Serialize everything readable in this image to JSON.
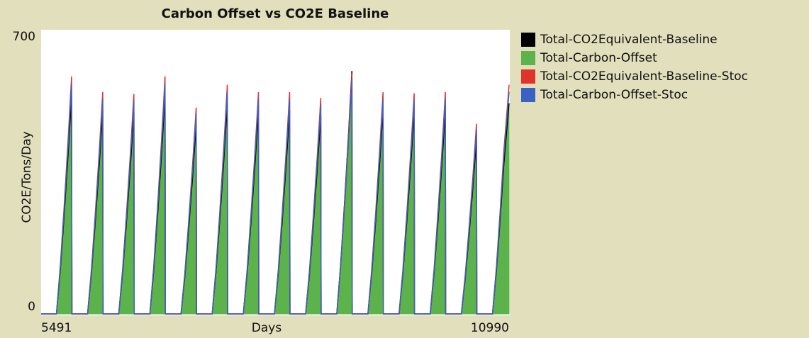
{
  "chart_data": {
    "type": "line",
    "title": "Carbon Offset vs CO2E Baseline",
    "x_label": "Days",
    "y_label": "CO2E/Tons/Day",
    "xlim": [
      5491,
      10990
    ],
    "xticks": [
      5491,
      10990
    ],
    "ylim": [
      0,
      700
    ],
    "yticks": [
      0,
      700
    ],
    "grid": false,
    "legend": "right",
    "x": [
      5491,
      5671,
      5716,
      5761,
      5806,
      5849,
      5853,
      6037,
      6082,
      6127,
      6172,
      6215,
      6219,
      6403,
      6448,
      6493,
      6538,
      6581,
      6585,
      6769,
      6814,
      6859,
      6904,
      6947,
      6951,
      7135,
      7180,
      7225,
      7270,
      7313,
      7317,
      7501,
      7546,
      7591,
      7636,
      7679,
      7683,
      7867,
      7912,
      7957,
      8002,
      8045,
      8049,
      8233,
      8278,
      8323,
      8368,
      8411,
      8415,
      8599,
      8644,
      8689,
      8734,
      8777,
      8781,
      8965,
      9010,
      9055,
      9100,
      9143,
      9147,
      9331,
      9376,
      9421,
      9466,
      9509,
      9513,
      9697,
      9742,
      9787,
      9832,
      9875,
      9879,
      10063,
      10108,
      10153,
      10198,
      10241,
      10245,
      10429,
      10474,
      10519,
      10564,
      10607,
      10611,
      10795,
      10840,
      10885,
      10930,
      10990
    ],
    "series": [
      {
        "name": "Total-CO2Equivalent-Baseline",
        "color": "#000000",
        "values": [
          0,
          0,
          113,
          255,
          408,
          567,
          0,
          0,
          106,
          238,
          381,
          529,
          0,
          0,
          105,
          236,
          377,
          524,
          0,
          0,
          113,
          255,
          408,
          567,
          0,
          0,
          98,
          221,
          354,
          492,
          0,
          0,
          109,
          246,
          393,
          546,
          0,
          0,
          106,
          238,
          381,
          529,
          0,
          0,
          106,
          238,
          381,
          529,
          0,
          0,
          103,
          232,
          371,
          515,
          0,
          0,
          126,
          284,
          454,
          630,
          0,
          0,
          106,
          238,
          381,
          529,
          0,
          0,
          105,
          237,
          379,
          526,
          0,
          0,
          106,
          238,
          381,
          529,
          0,
          0,
          91,
          204,
          327,
          454,
          0,
          0,
          109,
          246,
          393,
          546
        ]
      },
      {
        "name": "Total-Carbon-Offset",
        "color": "#5db34b",
        "area": true,
        "values": [
          0,
          0,
          113,
          255,
          408,
          567,
          0,
          0,
          106,
          238,
          381,
          529,
          0,
          0,
          105,
          236,
          377,
          524,
          0,
          0,
          113,
          255,
          408,
          567,
          0,
          0,
          98,
          221,
          354,
          492,
          0,
          0,
          109,
          246,
          393,
          546,
          0,
          0,
          106,
          238,
          381,
          529,
          0,
          0,
          106,
          238,
          381,
          529,
          0,
          0,
          103,
          232,
          371,
          515,
          0,
          0,
          114,
          257,
          412,
          572,
          0,
          0,
          106,
          238,
          381,
          529,
          0,
          0,
          105,
          237,
          379,
          526,
          0,
          0,
          106,
          238,
          381,
          529,
          0,
          0,
          91,
          204,
          327,
          454,
          0,
          0,
          109,
          246,
          393,
          546
        ]
      },
      {
        "name": "Total-CO2Equivalent-Baseline-Stoc",
        "color": "#e0332b",
        "values": [
          0,
          0,
          123,
          277,
          444,
          616,
          0,
          0,
          115,
          259,
          414,
          575,
          0,
          0,
          114,
          257,
          410,
          570,
          0,
          0,
          123,
          277,
          444,
          616,
          0,
          0,
          107,
          241,
          385,
          535,
          0,
          0,
          119,
          267,
          428,
          594,
          0,
          0,
          115,
          259,
          414,
          575,
          0,
          0,
          115,
          259,
          414,
          575,
          0,
          0,
          112,
          252,
          403,
          560,
          0,
          0,
          124,
          280,
          448,
          622,
          0,
          0,
          115,
          259,
          414,
          575,
          0,
          0,
          114,
          257,
          412,
          572,
          0,
          0,
          115,
          259,
          414,
          575,
          0,
          0,
          99,
          222,
          355,
          493,
          0,
          0,
          119,
          267,
          428,
          594
        ]
      },
      {
        "name": "Total-Carbon-Offset-Stoc",
        "color": "#3a62c4",
        "values": [
          0,
          0,
          120,
          269,
          431,
          598,
          0,
          0,
          112,
          251,
          402,
          558,
          0,
          0,
          111,
          249,
          398,
          553,
          0,
          0,
          120,
          269,
          431,
          598,
          0,
          0,
          104,
          234,
          374,
          519,
          0,
          0,
          115,
          259,
          415,
          576,
          0,
          0,
          112,
          251,
          402,
          558,
          0,
          0,
          112,
          251,
          402,
          558,
          0,
          0,
          109,
          244,
          391,
          543,
          0,
          0,
          121,
          271,
          434,
          603,
          0,
          0,
          112,
          251,
          402,
          558,
          0,
          0,
          111,
          250,
          400,
          555,
          0,
          0,
          112,
          251,
          402,
          558,
          0,
          0,
          96,
          215,
          344,
          478,
          0,
          0,
          115,
          259,
          415,
          576
        ]
      }
    ]
  }
}
